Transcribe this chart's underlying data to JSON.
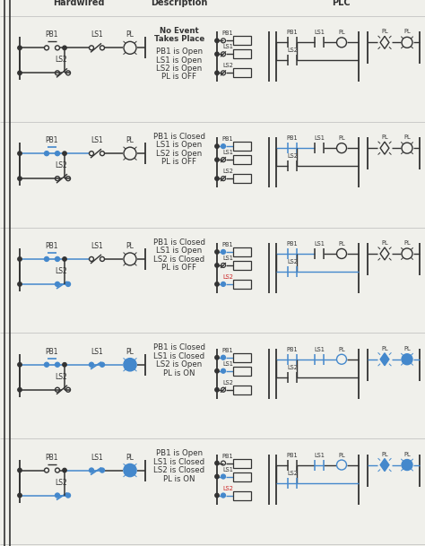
{
  "title_hw": "Hardwired",
  "title_desc": "Description",
  "title_plc": "PLC",
  "bg_color": "#f0f0eb",
  "black": "#333333",
  "blue": "#4488cc",
  "dark_blue": "#2266aa",
  "red": "#cc2222",
  "rows": [
    {
      "desc_lines": [
        "No Event",
        "Takes Place",
        "",
        "PB1 is Open",
        "LS1 is Open",
        "LS2 is Open",
        "PL is OFF"
      ],
      "pb1_closed": false,
      "ls1_closed": false,
      "ls2_closed": false,
      "pl_on": false
    },
    {
      "desc_lines": [
        "PB1 is Closed",
        "LS1 is Open",
        "LS2 is Open",
        "PL is OFF"
      ],
      "pb1_closed": true,
      "ls1_closed": false,
      "ls2_closed": false,
      "pl_on": false
    },
    {
      "desc_lines": [
        "PB1 is Closed",
        "LS1 is Open",
        "LS2 is Closed",
        "PL is OFF"
      ],
      "pb1_closed": true,
      "ls1_closed": false,
      "ls2_closed": true,
      "pl_on": false
    },
    {
      "desc_lines": [
        "PB1 is Closed",
        "LS1 is Closed",
        "LS2 is Open",
        "PL is ON"
      ],
      "pb1_closed": true,
      "ls1_closed": true,
      "ls2_closed": false,
      "pl_on": true
    },
    {
      "desc_lines": [
        "PB1 is Open",
        "LS1 is Closed",
        "LS2 is Closed",
        "PL is ON"
      ],
      "pb1_closed": false,
      "ls1_closed": true,
      "ls2_closed": true,
      "pl_on": true
    }
  ]
}
